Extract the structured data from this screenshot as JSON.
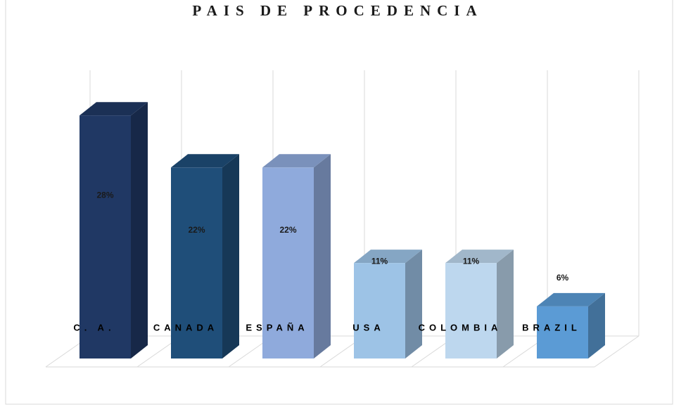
{
  "chart_data": {
    "type": "bar3d",
    "title": "PAIS DE PROCEDENCIA",
    "categories": [
      "C. A.",
      "CANADA",
      "ESPAÑA",
      "USA",
      "COLOMBIA",
      "BRAZIL"
    ],
    "values": [
      28,
      22,
      22,
      11,
      11,
      6
    ],
    "value_labels": [
      "28%",
      "22%",
      "22%",
      "11%",
      "11%",
      "6%"
    ],
    "colors": [
      "#203864",
      "#1f4e79",
      "#8faadc",
      "#9dc3e6",
      "#bdd7ee",
      "#5b9bd5"
    ]
  }
}
